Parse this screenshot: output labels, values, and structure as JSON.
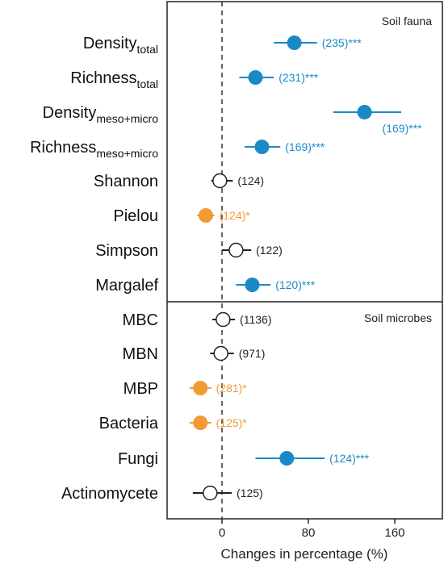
{
  "colors": {
    "significant_positive": "#1a8ac6",
    "significant_negative": "#f39a32",
    "not_significant": "#222222",
    "frame": "#222222"
  },
  "chart_data": {
    "type": "forest",
    "xlabel": "Changes in percentage (%)",
    "xlim": [
      -45,
      183
    ],
    "xticks": [
      0,
      80,
      160
    ],
    "reference_line": 0,
    "panels": [
      {
        "title": "Soil fauna",
        "rows": [
          {
            "label": "Density",
            "label_sub": "total",
            "mean": 67,
            "lo": 48,
            "hi": 88,
            "n_text": "(235)***",
            "significance": "positive",
            "annotation_below": false
          },
          {
            "label": "Richness",
            "label_sub": "total",
            "mean": 31,
            "lo": 16,
            "hi": 48,
            "n_text": "(231)***",
            "significance": "positive",
            "annotation_below": false
          },
          {
            "label": "Density",
            "label_sub": "meso+micro",
            "mean": 132,
            "lo": 103,
            "hi": 166,
            "n_text": "(169)***",
            "significance": "positive",
            "annotation_below": true
          },
          {
            "label": "Richness",
            "label_sub": "meso+micro",
            "mean": 37,
            "lo": 21,
            "hi": 54,
            "n_text": "(169)***",
            "significance": "positive",
            "annotation_below": false
          },
          {
            "label": "Shannon",
            "label_sub": "",
            "mean": -2,
            "lo": -10,
            "hi": 10,
            "n_text": "(124)",
            "significance": "none",
            "annotation_below": false
          },
          {
            "label": "Pielou",
            "label_sub": "",
            "mean": -15,
            "lo": -23,
            "hi": -7,
            "n_text": "(124)*",
            "significance": "negative",
            "annotation_below": false
          },
          {
            "label": "Simpson",
            "label_sub": "",
            "mean": 13,
            "lo": 0,
            "hi": 27,
            "n_text": "(122)",
            "significance": "none",
            "annotation_below": false
          },
          {
            "label": "Margalef",
            "label_sub": "",
            "mean": 28,
            "lo": 13,
            "hi": 45,
            "n_text": "(120)***",
            "significance": "positive",
            "annotation_below": false
          }
        ]
      },
      {
        "title": "Soil microbes",
        "rows": [
          {
            "label": "MBC",
            "label_sub": "",
            "mean": 1,
            "lo": -9,
            "hi": 12,
            "n_text": "(1136)",
            "significance": "none",
            "annotation_below": false
          },
          {
            "label": "MBN",
            "label_sub": "",
            "mean": -1,
            "lo": -11,
            "hi": 11,
            "n_text": "(971)",
            "significance": "none",
            "annotation_below": false
          },
          {
            "label": "MBP",
            "label_sub": "",
            "mean": -20,
            "lo": -30,
            "hi": -10,
            "n_text": "(281)*",
            "significance": "negative",
            "annotation_below": false
          },
          {
            "label": "Bacteria",
            "label_sub": "",
            "mean": -20,
            "lo": -30,
            "hi": -10,
            "n_text": "(125)*",
            "significance": "negative",
            "annotation_below": false
          },
          {
            "label": "Fungi",
            "label_sub": "",
            "mean": 60,
            "lo": 31,
            "hi": 95,
            "n_text": "(124)***",
            "significance": "positive",
            "annotation_below": false
          },
          {
            "label": "Actinomycete",
            "label_sub": "",
            "mean": -11,
            "lo": -27,
            "hi": 9,
            "n_text": "(125)",
            "significance": "none",
            "annotation_below": false
          }
        ]
      }
    ]
  }
}
